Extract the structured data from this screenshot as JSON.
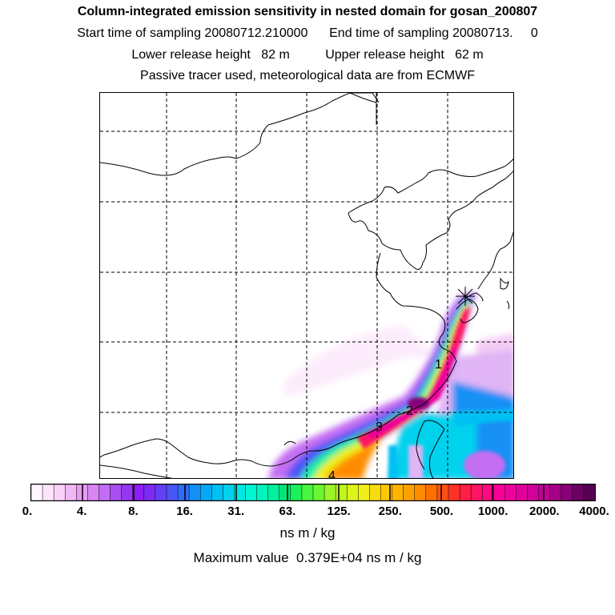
{
  "header": {
    "title": "Column-integrated emission sensitivity in nested domain for gosan_200807",
    "sampling": "Start time of sampling 20080712.210000      End time of sampling 20080713.     0",
    "release": "Lower release height   82 m          Upper release height   62 m",
    "info": "Passive tracer used, meteorological data are from ECMWF"
  },
  "map": {
    "contour_labels": [
      "1",
      "2",
      "3",
      "4"
    ],
    "receptor_marker": "star-icon",
    "coastline_color": "#000000",
    "grid_style": "dashed"
  },
  "colorbar": {
    "tick_labels": [
      "0.",
      "4.",
      "8.",
      "16.",
      "31.",
      "63.",
      "125.",
      "250.",
      "500.",
      "1000.",
      "2000.",
      "4000."
    ],
    "colors": [
      "#fff7fd",
      "#fde6fb",
      "#f8d2f8",
      "#f0b8f5",
      "#e59cf2",
      "#d986f3",
      "#c36df2",
      "#a850ef",
      "#9637f2",
      "#8e1ff5",
      "#7c2bf5",
      "#6440f5",
      "#4a55f5",
      "#2f6cf5",
      "#1490f5",
      "#07a8f5",
      "#00c0f3",
      "#00d2ee",
      "#00e8e4",
      "#00f5d2",
      "#00f5bc",
      "#00f0a0",
      "#00e678",
      "#1cf05a",
      "#48f540",
      "#6cf532",
      "#9cf528",
      "#c0f520",
      "#dcf518",
      "#f0f018",
      "#f8dc10",
      "#ffc800",
      "#ffb400",
      "#ffa000",
      "#ff8c00",
      "#ff7000",
      "#ff5014",
      "#ff3228",
      "#ff1e46",
      "#ff1464",
      "#ff0a82",
      "#fa0096",
      "#f0009b",
      "#e1009b",
      "#d2009b",
      "#c00096",
      "#a50087",
      "#870078",
      "#6e0064",
      "#550050"
    ],
    "units": "ns m / kg",
    "maximum_text": "Maximum value  0.379E+04 ns m / kg"
  }
}
